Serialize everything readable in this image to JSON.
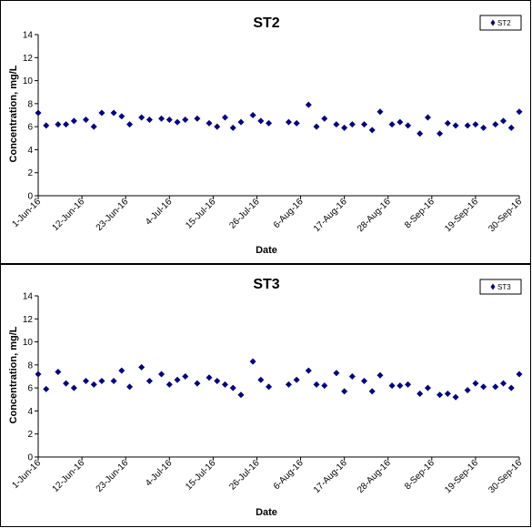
{
  "chart_data": [
    {
      "type": "scatter",
      "title": "ST2",
      "xlabel": "Date",
      "ylabel": "Concentration, mg/L",
      "ylim": [
        0,
        14
      ],
      "yticks": [
        0,
        2,
        4,
        6,
        8,
        10,
        12,
        14
      ],
      "xlim": [
        "2016-06-01",
        "2016-09-30"
      ],
      "xtick_labels": [
        "1-Jun-16",
        "12-Jun-16",
        "23-Jun-16",
        "4-Jul-16",
        "15-Jul-16",
        "26-Jul-16",
        "6-Aug-16",
        "17-Aug-16",
        "28-Aug-16",
        "8-Sep-16",
        "19-Sep-16",
        "30-Sep-16"
      ],
      "legend": "top-right",
      "grid": false,
      "color": "#000080",
      "series": [
        {
          "name": "ST2",
          "marker": "diamond",
          "points": [
            [
              "2016-06-01",
              7.2
            ],
            [
              "2016-06-03",
              6.1
            ],
            [
              "2016-06-06",
              6.2
            ],
            [
              "2016-06-08",
              6.2
            ],
            [
              "2016-06-10",
              6.5
            ],
            [
              "2016-06-13",
              6.6
            ],
            [
              "2016-06-15",
              6.0
            ],
            [
              "2016-06-17",
              7.2
            ],
            [
              "2016-06-20",
              7.2
            ],
            [
              "2016-06-22",
              6.9
            ],
            [
              "2016-06-24",
              6.2
            ],
            [
              "2016-06-27",
              6.8
            ],
            [
              "2016-06-29",
              6.6
            ],
            [
              "2016-07-02",
              6.7
            ],
            [
              "2016-07-04",
              6.6
            ],
            [
              "2016-07-06",
              6.4
            ],
            [
              "2016-07-08",
              6.6
            ],
            [
              "2016-07-11",
              6.7
            ],
            [
              "2016-07-14",
              6.3
            ],
            [
              "2016-07-16",
              6.0
            ],
            [
              "2016-07-18",
              6.8
            ],
            [
              "2016-07-20",
              5.9
            ],
            [
              "2016-07-22",
              6.4
            ],
            [
              "2016-07-25",
              7.0
            ],
            [
              "2016-07-27",
              6.5
            ],
            [
              "2016-07-29",
              6.3
            ],
            [
              "2016-08-03",
              6.4
            ],
            [
              "2016-08-05",
              6.3
            ],
            [
              "2016-08-08",
              7.9
            ],
            [
              "2016-08-10",
              6.0
            ],
            [
              "2016-08-12",
              6.7
            ],
            [
              "2016-08-15",
              6.2
            ],
            [
              "2016-08-17",
              5.9
            ],
            [
              "2016-08-19",
              6.2
            ],
            [
              "2016-08-22",
              6.2
            ],
            [
              "2016-08-24",
              5.7
            ],
            [
              "2016-08-26",
              7.3
            ],
            [
              "2016-08-29",
              6.2
            ],
            [
              "2016-08-31",
              6.4
            ],
            [
              "2016-09-02",
              6.1
            ],
            [
              "2016-09-05",
              5.4
            ],
            [
              "2016-09-07",
              6.8
            ],
            [
              "2016-09-10",
              5.4
            ],
            [
              "2016-09-12",
              6.3
            ],
            [
              "2016-09-14",
              6.1
            ],
            [
              "2016-09-17",
              6.1
            ],
            [
              "2016-09-19",
              6.2
            ],
            [
              "2016-09-21",
              5.9
            ],
            [
              "2016-09-24",
              6.2
            ],
            [
              "2016-09-26",
              6.5
            ],
            [
              "2016-09-28",
              5.9
            ],
            [
              "2016-09-30",
              7.3
            ]
          ]
        }
      ]
    },
    {
      "type": "scatter",
      "title": "ST3",
      "xlabel": "Date",
      "ylabel": "Concentration, mg/L",
      "ylim": [
        0,
        14
      ],
      "yticks": [
        0,
        2,
        4,
        6,
        8,
        10,
        12,
        14
      ],
      "xlim": [
        "2016-06-01",
        "2016-09-30"
      ],
      "xtick_labels": [
        "1-Jun-16",
        "12-Jun-16",
        "23-Jun-16",
        "4-Jul-16",
        "15-Jul-16",
        "26-Jul-16",
        "6-Aug-16",
        "17-Aug-16",
        "28-Aug-16",
        "8-Sep-16",
        "19-Sep-16",
        "30-Sep-16"
      ],
      "legend": "top-right",
      "grid": false,
      "color": "#000080",
      "series": [
        {
          "name": "ST3",
          "marker": "diamond",
          "points": [
            [
              "2016-06-01",
              7.2
            ],
            [
              "2016-06-03",
              5.9
            ],
            [
              "2016-06-06",
              7.4
            ],
            [
              "2016-06-08",
              6.4
            ],
            [
              "2016-06-10",
              6.0
            ],
            [
              "2016-06-13",
              6.6
            ],
            [
              "2016-06-15",
              6.3
            ],
            [
              "2016-06-17",
              6.6
            ],
            [
              "2016-06-20",
              6.6
            ],
            [
              "2016-06-22",
              7.5
            ],
            [
              "2016-06-24",
              6.1
            ],
            [
              "2016-06-27",
              7.8
            ],
            [
              "2016-06-29",
              6.6
            ],
            [
              "2016-07-02",
              7.2
            ],
            [
              "2016-07-04",
              6.3
            ],
            [
              "2016-07-06",
              6.7
            ],
            [
              "2016-07-08",
              7.0
            ],
            [
              "2016-07-11",
              6.4
            ],
            [
              "2016-07-14",
              6.9
            ],
            [
              "2016-07-16",
              6.6
            ],
            [
              "2016-07-18",
              6.3
            ],
            [
              "2016-07-20",
              6.0
            ],
            [
              "2016-07-22",
              5.4
            ],
            [
              "2016-07-25",
              8.3
            ],
            [
              "2016-07-27",
              6.7
            ],
            [
              "2016-07-29",
              6.1
            ],
            [
              "2016-08-03",
              6.3
            ],
            [
              "2016-08-05",
              6.7
            ],
            [
              "2016-08-08",
              7.5
            ],
            [
              "2016-08-10",
              6.3
            ],
            [
              "2016-08-12",
              6.2
            ],
            [
              "2016-08-15",
              7.3
            ],
            [
              "2016-08-17",
              5.7
            ],
            [
              "2016-08-19",
              7.0
            ],
            [
              "2016-08-22",
              6.6
            ],
            [
              "2016-08-24",
              5.7
            ],
            [
              "2016-08-26",
              7.1
            ],
            [
              "2016-08-29",
              6.2
            ],
            [
              "2016-08-31",
              6.2
            ],
            [
              "2016-09-02",
              6.3
            ],
            [
              "2016-09-05",
              5.5
            ],
            [
              "2016-09-07",
              6.0
            ],
            [
              "2016-09-10",
              5.4
            ],
            [
              "2016-09-12",
              5.5
            ],
            [
              "2016-09-14",
              5.2
            ],
            [
              "2016-09-17",
              5.8
            ],
            [
              "2016-09-19",
              6.4
            ],
            [
              "2016-09-21",
              6.1
            ],
            [
              "2016-09-24",
              6.1
            ],
            [
              "2016-09-26",
              6.4
            ],
            [
              "2016-09-28",
              6.0
            ],
            [
              "2016-09-30",
              7.2
            ]
          ]
        }
      ]
    }
  ]
}
